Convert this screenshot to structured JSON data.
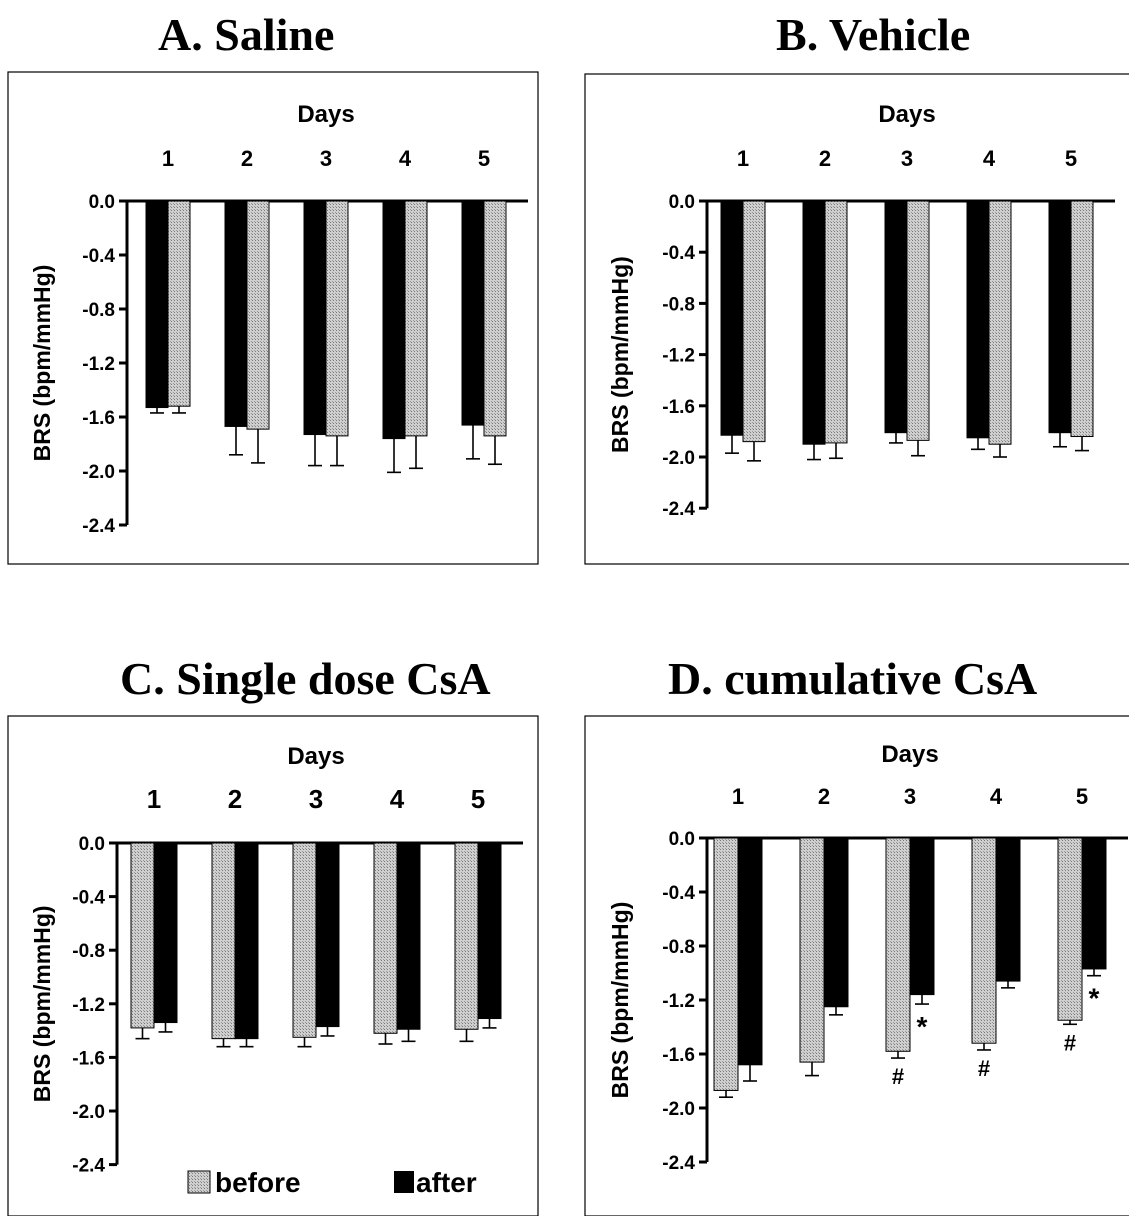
{
  "colors": {
    "before": "#c8c8c8",
    "after": "#000000",
    "frame": "#000000"
  },
  "legend": {
    "before": "before",
    "after": "after"
  },
  "chart_data": [
    {
      "type": "bar",
      "panel": "A",
      "title_letter": "A",
      "title_text": ". Saline",
      "xlabel": "Days",
      "ylabel": "BRS (bpm/mmHg)",
      "categories": [
        "1",
        "2",
        "3",
        "4",
        "5"
      ],
      "ylim": [
        -2.4,
        0.0
      ],
      "yticks": [
        "0.0",
        "-0.4",
        "-0.8",
        "-1.2",
        "-1.6",
        "-2.0",
        "-2.4"
      ],
      "bar_order": [
        "after",
        "before"
      ],
      "series": [
        {
          "key": "before",
          "values": [
            -1.52,
            -1.69,
            -1.74,
            -1.74,
            -1.74
          ],
          "errors": [
            0.05,
            0.25,
            0.22,
            0.24,
            0.21
          ]
        },
        {
          "key": "after",
          "values": [
            -1.53,
            -1.67,
            -1.73,
            -1.76,
            -1.66
          ],
          "errors": [
            0.04,
            0.21,
            0.23,
            0.25,
            0.25
          ]
        }
      ],
      "annotations": []
    },
    {
      "type": "bar",
      "panel": "B",
      "title_letter": "B",
      "title_text": ". Vehicle",
      "xlabel": "Days",
      "ylabel": "BRS (bpm/mmHg)",
      "categories": [
        "1",
        "2",
        "3",
        "4",
        "5"
      ],
      "ylim": [
        -2.4,
        0.0
      ],
      "yticks": [
        "0.0",
        "-0.4",
        "-0.8",
        "-1.2",
        "-1.6",
        "-2.0",
        "-2.4"
      ],
      "bar_order": [
        "after",
        "before"
      ],
      "series": [
        {
          "key": "before",
          "values": [
            -1.88,
            -1.89,
            -1.87,
            -1.9,
            -1.84
          ],
          "errors": [
            0.15,
            0.12,
            0.12,
            0.1,
            0.11
          ]
        },
        {
          "key": "after",
          "values": [
            -1.83,
            -1.9,
            -1.81,
            -1.85,
            -1.81
          ],
          "errors": [
            0.14,
            0.12,
            0.08,
            0.09,
            0.11
          ]
        }
      ],
      "annotations": []
    },
    {
      "type": "bar",
      "panel": "C",
      "title_letter": "C",
      "title_text": ". Single dose CsA",
      "xlabel": "Days",
      "ylabel": "BRS (bpm/mmHg)",
      "categories": [
        "1",
        "2",
        "3",
        "4",
        "5"
      ],
      "ylim": [
        -2.4,
        0.0
      ],
      "yticks": [
        "0.0",
        "-0.4",
        "-0.8",
        "-1.2",
        "-1.6",
        "-2.0",
        "-2.4"
      ],
      "bar_order": [
        "before",
        "after"
      ],
      "series": [
        {
          "key": "before",
          "values": [
            -1.38,
            -1.46,
            -1.45,
            -1.42,
            -1.39
          ],
          "errors": [
            0.08,
            0.06,
            0.07,
            0.08,
            0.09
          ]
        },
        {
          "key": "after",
          "values": [
            -1.34,
            -1.46,
            -1.37,
            -1.39,
            -1.31
          ],
          "errors": [
            0.07,
            0.06,
            0.07,
            0.09,
            0.07
          ]
        }
      ],
      "annotations": []
    },
    {
      "type": "bar",
      "panel": "D",
      "title_letter": "D",
      "title_text": ". cumulative CsA",
      "xlabel": "Days",
      "ylabel": "BRS (bpm/mmHg)",
      "categories": [
        "1",
        "2",
        "3",
        "4",
        "5"
      ],
      "ylim": [
        -2.4,
        0.0
      ],
      "yticks": [
        "0.0",
        "-0.4",
        "-0.8",
        "-1.2",
        "-1.6",
        "-2.0",
        "-2.4"
      ],
      "bar_order": [
        "before",
        "after"
      ],
      "series": [
        {
          "key": "before",
          "values": [
            -1.87,
            -1.66,
            -1.58,
            -1.52,
            -1.35
          ],
          "errors": [
            0.05,
            0.1,
            0.05,
            0.05,
            0.03
          ]
        },
        {
          "key": "after",
          "values": [
            -1.68,
            -1.25,
            -1.16,
            -1.06,
            -0.97
          ],
          "errors": [
            0.12,
            0.06,
            0.07,
            0.05,
            0.05
          ]
        }
      ],
      "annotations": [
        {
          "text": "#",
          "series": "before",
          "index": 2
        },
        {
          "text": "*",
          "series": "after",
          "index": 2
        },
        {
          "text": "#",
          "series": "before",
          "index": 3
        },
        {
          "text": "#",
          "series": "before",
          "index": 4
        },
        {
          "text": "*",
          "series": "after",
          "index": 4
        }
      ]
    }
  ]
}
